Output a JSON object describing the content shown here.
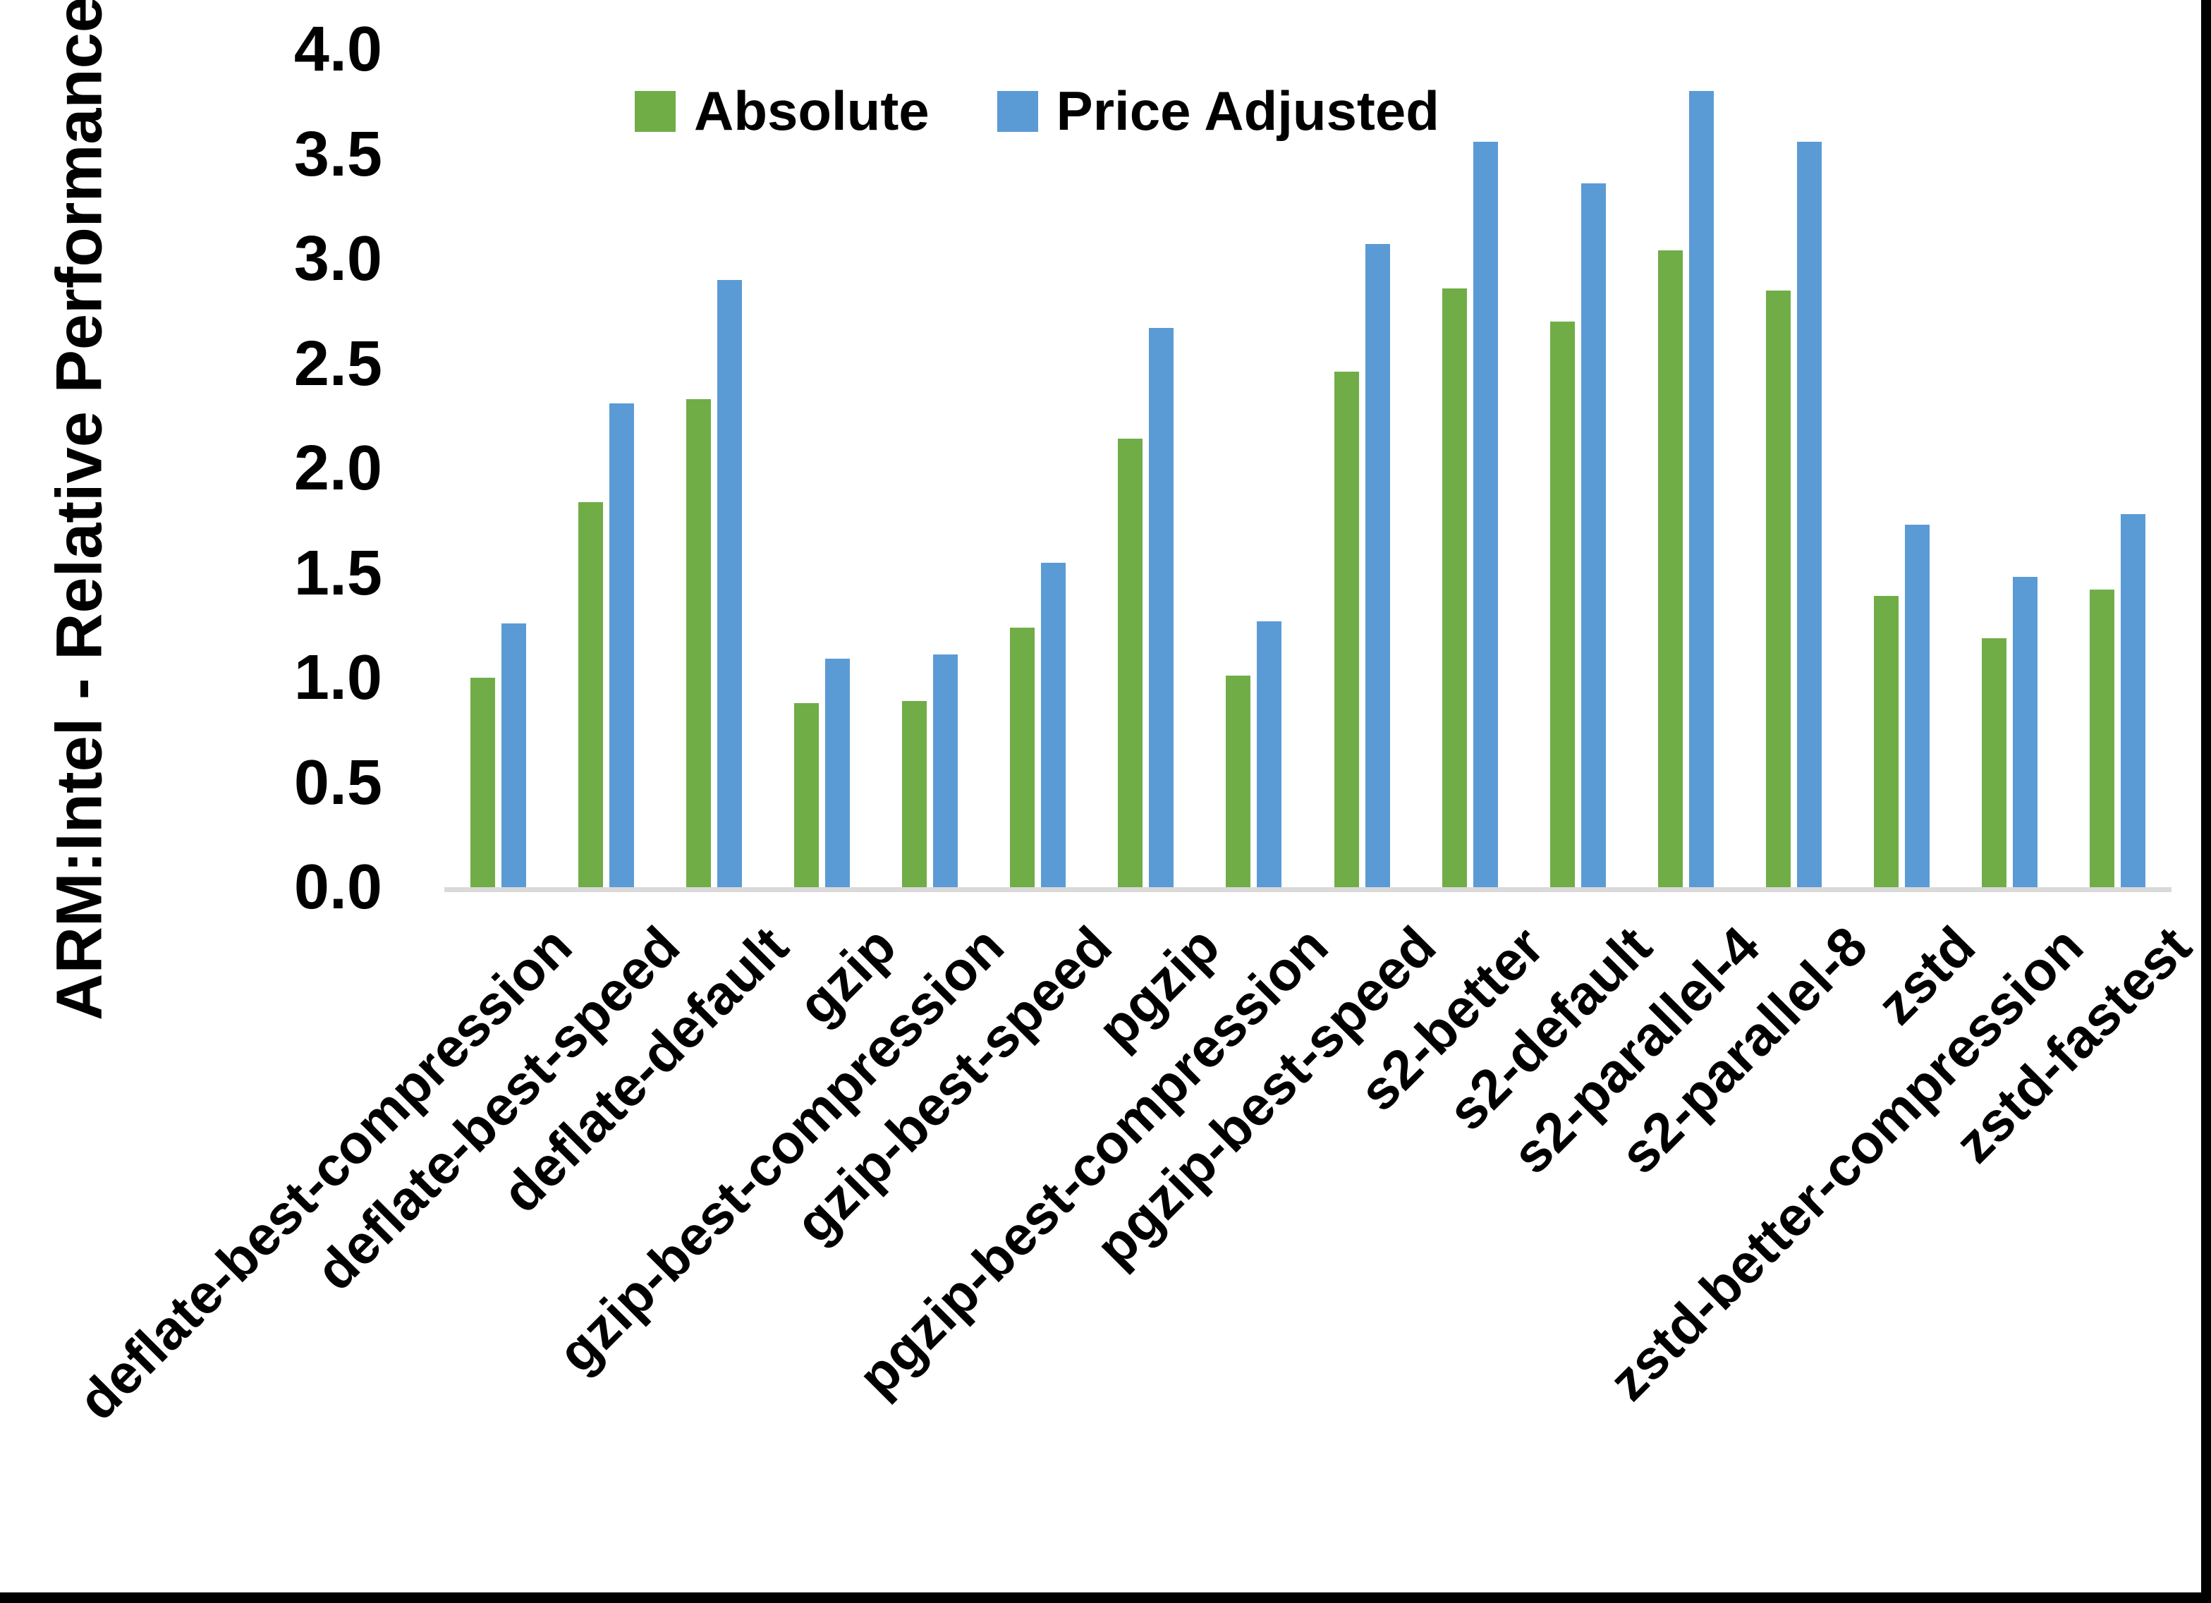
{
  "chart_data": {
    "type": "bar",
    "title": "",
    "xlabel": "",
    "ylabel": "ARM:Intel - Relative Performance",
    "ylim": [
      0,
      4.0
    ],
    "ytick_labels": [
      "0.0",
      "0.5",
      "1.0",
      "1.5",
      "2.0",
      "2.5",
      "3.0",
      "3.5",
      "4.0"
    ],
    "grid": false,
    "legend_position": "top-center",
    "categories": [
      "deflate-best-compression",
      "deflate-best-speed",
      "deflate-default",
      "gzip",
      "gzip-best-compression",
      "gzip-best-speed",
      "pgzip",
      "pgzip-best-compression",
      "pgzip-best-speed",
      "s2-better",
      "s2-default",
      "s2-parallel-4",
      "s2-parallel-8",
      "zstd",
      "zstd-better-compression",
      "zstd-fastest"
    ],
    "series": [
      {
        "name": "Absolute",
        "color": "#70AD47",
        "values": [
          1.0,
          1.84,
          2.33,
          0.88,
          0.89,
          1.24,
          2.14,
          1.01,
          2.46,
          2.86,
          2.7,
          3.04,
          2.85,
          1.39,
          1.19,
          1.42
        ]
      },
      {
        "name": "Price Adjusted",
        "color": "#5B9BD5",
        "values": [
          1.26,
          2.31,
          2.9,
          1.09,
          1.11,
          1.55,
          2.67,
          1.27,
          3.07,
          3.56,
          3.36,
          3.8,
          3.56,
          1.73,
          1.48,
          1.78
        ]
      }
    ]
  },
  "colors": {
    "background": "#FFFFFF",
    "axis_line": "#D9D9D9",
    "text": "#000000",
    "frame": "#000000"
  }
}
